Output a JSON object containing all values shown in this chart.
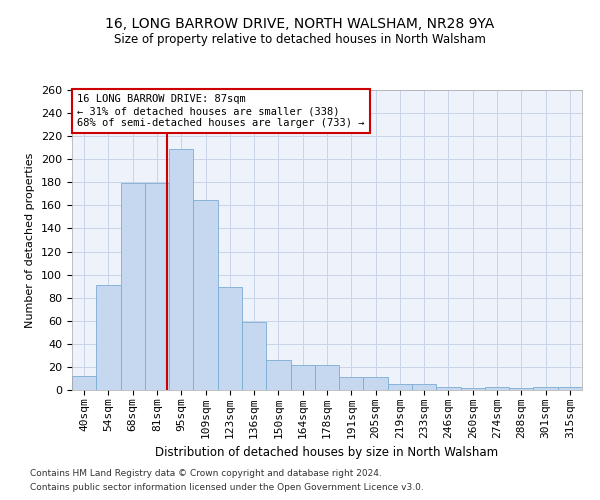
{
  "title1": "16, LONG BARROW DRIVE, NORTH WALSHAM, NR28 9YA",
  "title2": "Size of property relative to detached houses in North Walsham",
  "xlabel": "Distribution of detached houses by size in North Walsham",
  "ylabel": "Number of detached properties",
  "footnote1": "Contains HM Land Registry data © Crown copyright and database right 2024.",
  "footnote2": "Contains public sector information licensed under the Open Government Licence v3.0.",
  "categories": [
    "40sqm",
    "54sqm",
    "68sqm",
    "81sqm",
    "95sqm",
    "109sqm",
    "123sqm",
    "136sqm",
    "150sqm",
    "164sqm",
    "178sqm",
    "191sqm",
    "205sqm",
    "219sqm",
    "233sqm",
    "246sqm",
    "260sqm",
    "274sqm",
    "288sqm",
    "301sqm",
    "315sqm"
  ],
  "values": [
    12,
    91,
    179,
    179,
    209,
    165,
    89,
    59,
    26,
    22,
    22,
    11,
    11,
    5,
    5,
    3,
    2,
    3,
    2,
    3,
    3
  ],
  "bar_color": "#c5d8f0",
  "bar_edge_color": "#7badd4",
  "grid_color": "#c8d4e8",
  "background_color": "#eef2fa",
  "vline_color": "#cc0000",
  "annotation_text": "16 LONG BARROW DRIVE: 87sqm\n← 31% of detached houses are smaller (338)\n68% of semi-detached houses are larger (733) →",
  "annotation_box_color": "#ffffff",
  "annotation_border_color": "#cc0000",
  "ylim": [
    0,
    260
  ],
  "yticks": [
    0,
    20,
    40,
    60,
    80,
    100,
    120,
    140,
    160,
    180,
    200,
    220,
    240,
    260
  ]
}
